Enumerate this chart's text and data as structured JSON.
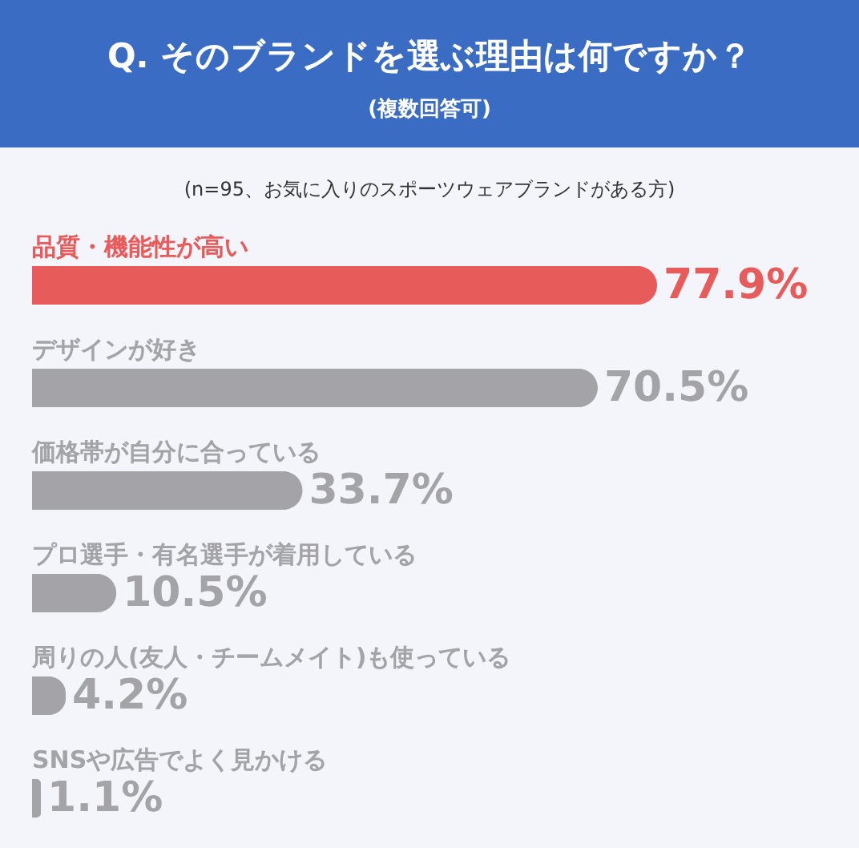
{
  "chart_data": {
    "type": "bar",
    "orientation": "horizontal",
    "title": "Q. そのブランドを選ぶ理由は何ですか？",
    "subtitle": "(複数回答可)",
    "annotations": [
      "(n=95、お気に入りのスポーツウェアブランドがある方)"
    ],
    "categories": [
      "品質・機能性が高い",
      "デザインが好き",
      "価格帯が自分に合っている",
      "プロ選手・有名選手が着用している",
      "周りの人(友人・チームメイト)も使っている",
      "SNSや広告でよく見かける"
    ],
    "values": [
      77.9,
      70.5,
      33.7,
      10.5,
      4.2,
      1.1
    ],
    "value_labels": [
      "77.9%",
      "70.5%",
      "33.7%",
      "10.5%",
      "4.2%",
      "1.1%"
    ],
    "colors": [
      "#e85b5b",
      "#a3a3a8",
      "#a3a3a8",
      "#a3a3a8",
      "#a3a3a8",
      "#a3a3a8"
    ]
  }
}
